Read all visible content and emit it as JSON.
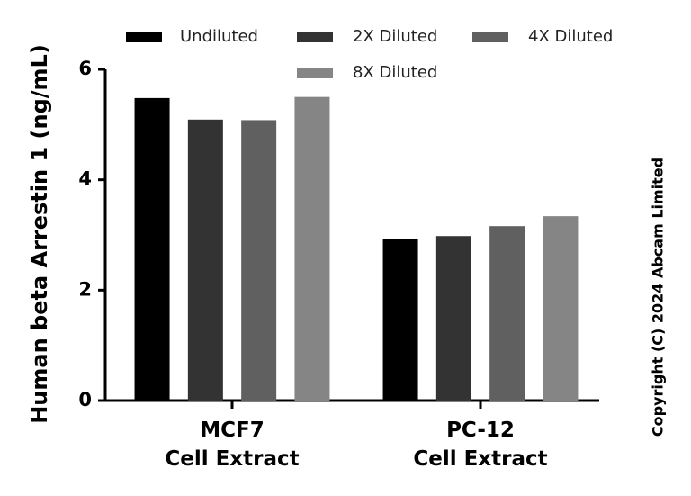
{
  "chart_data": {
    "type": "bar",
    "y_label": "Human beta Arrestin 1 (ng/mL)",
    "copyright": "Copyright (C) 2024 Abcam Limited",
    "categories": [
      "MCF7\nCell Extract",
      "PC-12\nCell Extract"
    ],
    "series": [
      {
        "name": "Undiluted",
        "color": "#000000",
        "values": [
          5.48,
          2.93
        ]
      },
      {
        "name": "2X Diluted",
        "color": "#333333",
        "values": [
          5.09,
          2.98
        ]
      },
      {
        "name": "4X Diluted",
        "color": "#606060",
        "values": [
          5.08,
          3.16
        ]
      },
      {
        "name": "8X Diluted",
        "color": "#858585",
        "values": [
          5.5,
          3.34
        ]
      }
    ],
    "ylim": [
      0,
      6
    ],
    "yticks": [
      0,
      2,
      4,
      6
    ]
  }
}
